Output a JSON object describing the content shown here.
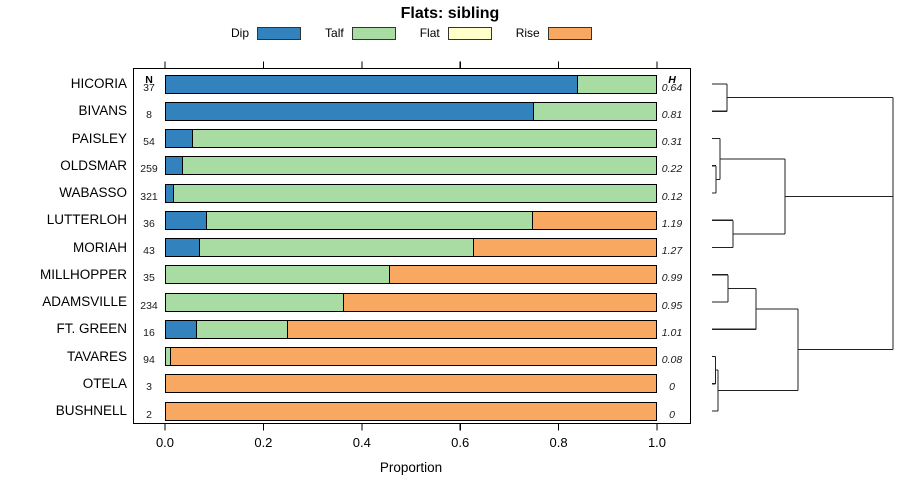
{
  "title": "Flats: sibling",
  "xlabel": "Proportion",
  "columns": {
    "n_header": "N",
    "h_header": "H"
  },
  "legend": [
    {
      "label": "Dip",
      "color": "#3182BD"
    },
    {
      "label": "Talf",
      "color": "#A9DCA3"
    },
    {
      "label": "Flat",
      "color": "#FFFFC9"
    },
    {
      "label": "Rise",
      "color": "#F9A862"
    }
  ],
  "chart_data": {
    "type": "bar",
    "orientation": "horizontal-stacked",
    "title": "Flats: sibling",
    "xlabel": "Proportion",
    "xlim": [
      0,
      1
    ],
    "x_ticks": [
      "0.0",
      "0.2",
      "0.4",
      "0.6",
      "0.8",
      "1.0"
    ],
    "x_tick_values": [
      0.0,
      0.2,
      0.4,
      0.6,
      0.8,
      1.0
    ],
    "categories": [
      "HICORIA",
      "BIVANS",
      "PAISLEY",
      "OLDSMAR",
      "WABASSO",
      "LUTTERLOH",
      "MORIAH",
      "MILLHOPPER",
      "ADAMSVILLE",
      "FT. GREEN",
      "TAVARES",
      "OTELA",
      "BUSHNELL"
    ],
    "n_values": [
      "37",
      "8",
      "54",
      "259",
      "321",
      "36",
      "43",
      "35",
      "234",
      "16",
      "94",
      "3",
      "2"
    ],
    "h_values": [
      "0.64",
      "0.81",
      "0.31",
      "0.22",
      "0.12",
      "1.19",
      "1.27",
      "0.99",
      "0.95",
      "1.01",
      "0.08",
      "0",
      "0"
    ],
    "series": [
      {
        "name": "Dip",
        "color": "#3182BD",
        "values": [
          0.84,
          0.75,
          0.056,
          0.035,
          0.016,
          0.083,
          0.07,
          0,
          0,
          0.063,
          0,
          0,
          0
        ]
      },
      {
        "name": "Talf",
        "color": "#A9DCA3",
        "values": [
          0.16,
          0.25,
          0.944,
          0.965,
          0.984,
          0.667,
          0.558,
          0.457,
          0.363,
          0.187,
          0.011,
          0,
          0
        ]
      },
      {
        "name": "Flat",
        "color": "#FFFFC9",
        "values": [
          0,
          0,
          0,
          0,
          0,
          0,
          0,
          0,
          0,
          0,
          0,
          0,
          0
        ]
      },
      {
        "name": "Rise",
        "color": "#F9A862",
        "values": [
          0,
          0,
          0,
          0,
          0,
          0.25,
          0.372,
          0.543,
          0.637,
          0.75,
          0.989,
          1,
          1
        ]
      }
    ],
    "legend_position": "top",
    "grid": false
  },
  "dendrogram": {
    "description": "agglomerative clustering of rows, drawn to the right of the bars",
    "tree": {
      "h": 1.0,
      "children": [
        {
          "h": 0.083,
          "children": [
            {
              "leaf": 0
            },
            {
              "leaf": 1
            }
          ]
        },
        {
          "h": 1.0,
          "children": [
            {
              "h": 0.403,
              "children": [
                {
                  "h": 0.044,
                  "children": [
                    {
                      "leaf": 2
                    },
                    {
                      "h": 0.022,
                      "children": [
                        {
                          "leaf": 3
                        },
                        {
                          "leaf": 4
                        }
                      ]
                    }
                  ]
                },
                {
                  "h": 0.116,
                  "children": [
                    {
                      "leaf": 5
                    },
                    {
                      "leaf": 6
                    }
                  ]
                }
              ]
            },
            {
              "h": 0.475,
              "children": [
                {
                  "h": 0.243,
                  "children": [
                    {
                      "h": 0.088,
                      "children": [
                        {
                          "leaf": 7
                        },
                        {
                          "leaf": 8
                        }
                      ]
                    },
                    {
                      "leaf": 9
                    }
                  ]
                },
                {
                  "h": 0.033,
                  "children": [
                    {
                      "h": 0.019,
                      "children": [
                        {
                          "leaf": 10
                        },
                        {
                          "leaf": 11
                        }
                      ]
                    },
                    {
                      "leaf": 12
                    }
                  ]
                }
              ]
            }
          ]
        }
      ]
    }
  }
}
